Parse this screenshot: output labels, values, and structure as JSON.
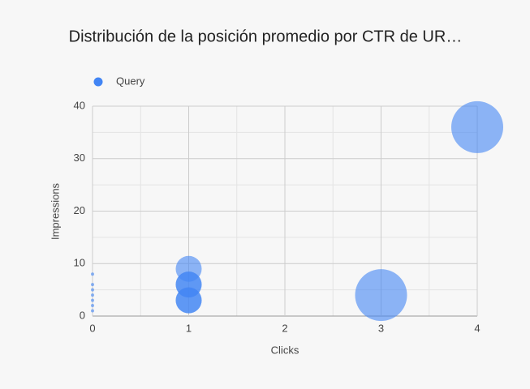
{
  "chart_data": {
    "type": "bubble",
    "title": "Distribución de la posición promedio por CTR de UR…",
    "x_label": "Clicks",
    "y_label": "Impressions",
    "xlim": [
      0,
      4
    ],
    "xticks": [
      0,
      1,
      2,
      3,
      4
    ],
    "ylim": [
      0,
      40
    ],
    "yticks": [
      0,
      10,
      20,
      30,
      40
    ],
    "grid": true,
    "minor_grid": true,
    "legend": "top-left",
    "series": [
      {
        "name": "Query",
        "color": "#4285f4",
        "x": [
          0,
          0,
          0,
          0,
          0,
          0,
          0,
          1,
          1,
          1,
          1,
          1,
          3,
          4
        ],
        "values": [
          1,
          2,
          3,
          4,
          5,
          6,
          8,
          9,
          6,
          6,
          3,
          3,
          4,
          36
        ],
        "sizes": [
          1,
          1,
          1,
          1,
          1,
          1,
          1,
          64,
          64,
          64,
          64,
          64,
          256,
          256
        ]
      }
    ]
  }
}
